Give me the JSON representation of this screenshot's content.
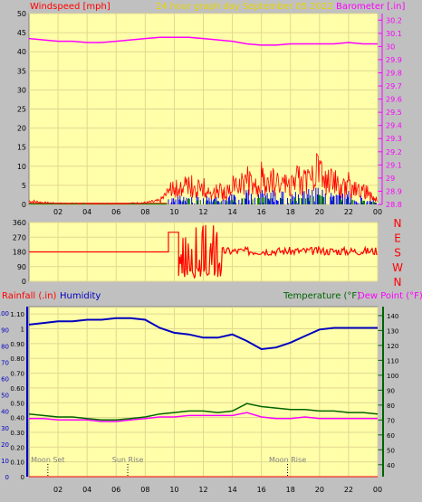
{
  "header": {
    "left_label": "Windspeed [mph]",
    "center_label": "24 hour graph day   September 05 2022",
    "right_label": "Barometer [.in]"
  },
  "bottom_header": {
    "rain_label": "Rainfall (.in)",
    "humidity_label": "Humidity",
    "temp_label": "Temperature (°F)",
    "dew_label": "Dew Point (°F)"
  },
  "colors": {
    "background": "#c0c0c0",
    "plot": "#ffffaa",
    "grid": "#e0d890",
    "wind": "#ff0000",
    "gust": "#0000ff",
    "green": "#008000",
    "barometer": "#ff00ff",
    "humidity": "#0000c0",
    "temperature": "#006400",
    "dewpoint": "#ff00ff",
    "header_yellow": "#e8d400"
  },
  "chart_data": [
    {
      "type": "line",
      "title": "24 hour graph day   September 05 2022",
      "x_ticks": [
        "02",
        "04",
        "06",
        "08",
        "10",
        "12",
        "14",
        "16",
        "18",
        "20",
        "22",
        "00"
      ],
      "ylabel_left": "Windspeed [mph]",
      "ylabel_right": "Barometer [.in]",
      "y_left_ticks": [
        0,
        5,
        10,
        15,
        20,
        25,
        30,
        35,
        40,
        45,
        50
      ],
      "ylim_left": [
        0,
        50
      ],
      "y_right_ticks": [
        28.8,
        28.9,
        29,
        29.1,
        29.2,
        29.3,
        29.4,
        29.5,
        29.6,
        29.7,
        29.8,
        29.9,
        30,
        30.1,
        30.2
      ],
      "ylim_right": [
        28.8,
        30.25
      ],
      "series": [
        {
          "name": "Barometer [.in]",
          "axis": "right",
          "x": [
            0,
            1,
            2,
            3,
            4,
            5,
            6,
            7,
            8,
            9,
            10,
            11,
            12,
            13,
            14,
            15,
            16,
            17,
            18,
            19,
            20,
            21,
            22,
            23,
            24
          ],
          "values": [
            30.06,
            30.05,
            30.04,
            30.04,
            30.03,
            30.03,
            30.04,
            30.05,
            30.06,
            30.07,
            30.07,
            30.07,
            30.06,
            30.05,
            30.04,
            30.02,
            30.01,
            30.01,
            30.02,
            30.02,
            30.02,
            30.02,
            30.03,
            30.02,
            30.02
          ]
        },
        {
          "name": "Windspeed [mph]",
          "axis": "left",
          "x": [
            0,
            1,
            2,
            3,
            4,
            5,
            6,
            7,
            8,
            9,
            9.5,
            10,
            10.5,
            11,
            11.5,
            12,
            12.5,
            13,
            13.5,
            14,
            14.5,
            15,
            15.5,
            16,
            16.5,
            17,
            17.5,
            18,
            18.5,
            19,
            19.5,
            20,
            20.5,
            21,
            21.5,
            22,
            22.5,
            23,
            23.5,
            24
          ],
          "values": [
            1,
            0.5,
            0.3,
            0.3,
            0.2,
            0.2,
            0.2,
            0.3,
            0.5,
            1,
            3,
            5,
            4,
            6,
            4,
            5,
            3,
            4,
            3,
            5,
            6,
            7,
            5,
            8,
            6,
            7,
            6,
            5,
            7,
            6,
            8,
            10,
            6,
            7,
            5,
            6,
            4,
            4,
            3,
            2
          ]
        }
      ]
    },
    {
      "type": "line",
      "x_ticks": [
        "02",
        "04",
        "06",
        "08",
        "10",
        "12",
        "14",
        "16",
        "18",
        "20",
        "22",
        "00"
      ],
      "y_left_ticks": [
        0,
        90,
        180,
        270,
        360
      ],
      "ylim": [
        0,
        360
      ],
      "y_right_labels": [
        "N",
        "W",
        "S",
        "E",
        "N"
      ],
      "series": [
        {
          "name": "Wind Direction",
          "x": [
            0,
            1,
            2,
            3,
            4,
            5,
            6,
            7,
            8,
            9,
            9.5,
            10,
            11,
            12,
            13,
            14,
            15,
            16,
            17,
            18,
            19,
            20,
            21,
            22,
            23,
            24
          ],
          "values": [
            180,
            180,
            180,
            180,
            180,
            180,
            180,
            180,
            180,
            180,
            300,
            200,
            150,
            180,
            170,
            180,
            200,
            200,
            190,
            195,
            185,
            190,
            190,
            185,
            180,
            190
          ]
        }
      ]
    },
    {
      "type": "line",
      "x_ticks": [
        "02",
        "04",
        "06",
        "08",
        "10",
        "12",
        "14",
        "16",
        "18",
        "20",
        "22",
        "00"
      ],
      "y_left_ticks": [
        0,
        0.1,
        0.2,
        0.3,
        0.4,
        0.5,
        0.6,
        0.7,
        0.8,
        0.9,
        1,
        1.1
      ],
      "y_left_tick_labels": [
        "0",
        "0.10",
        "0.20",
        "0.30",
        "0.40",
        "0.50",
        "0.60",
        "0.70",
        "0.80",
        "0.90",
        "1",
        "1.10"
      ],
      "y_inner_ticks": [
        0,
        10,
        20,
        30,
        40,
        50,
        60,
        70,
        80,
        90,
        100
      ],
      "y_right_ticks": [
        40,
        50,
        60,
        70,
        80,
        90,
        100,
        110,
        120,
        130,
        140
      ],
      "ylabel_left": "Rainfall (.in)",
      "ylabel_humidity": "Humidity",
      "ylabel_right": "Temperature (°F) Dew Point (°F)",
      "annotations": [
        {
          "label": "Moon Set",
          "x": 1.3
        },
        {
          "label": "Sun Rise",
          "x": 6.8
        },
        {
          "label": "Moon Rise",
          "x": 17.8
        }
      ],
      "series": [
        {
          "name": "Humidity",
          "axis": "humidity",
          "x": [
            0,
            1,
            2,
            3,
            4,
            5,
            6,
            7,
            8,
            9,
            10,
            11,
            12,
            13,
            14,
            15,
            16,
            17,
            18,
            19,
            20,
            21,
            22,
            23,
            24
          ],
          "values": [
            93,
            94,
            95,
            95,
            96,
            96,
            97,
            97,
            96,
            91,
            88,
            87,
            85,
            85,
            87,
            83,
            78,
            79,
            82,
            86,
            90,
            91,
            91,
            91,
            91
          ]
        },
        {
          "name": "Temperature (°F)",
          "axis": "right",
          "x": [
            0,
            1,
            2,
            3,
            4,
            5,
            6,
            7,
            8,
            9,
            10,
            11,
            12,
            13,
            14,
            15,
            16,
            17,
            18,
            19,
            20,
            21,
            22,
            23,
            24
          ],
          "values": [
            74,
            73,
            72,
            72,
            71,
            70,
            70,
            71,
            72,
            74,
            75,
            76,
            76,
            75,
            76,
            81,
            79,
            78,
            77,
            77,
            76,
            76,
            75,
            75,
            74
          ]
        },
        {
          "name": "Dew Point (°F)",
          "axis": "right",
          "x": [
            0,
            1,
            2,
            3,
            4,
            5,
            6,
            7,
            8,
            9,
            10,
            11,
            12,
            13,
            14,
            15,
            16,
            17,
            18,
            19,
            20,
            21,
            22,
            23,
            24
          ],
          "values": [
            71,
            71,
            70,
            70,
            70,
            69,
            69,
            70,
            71,
            72,
            72,
            73,
            73,
            73,
            73,
            75,
            72,
            71,
            71,
            72,
            71,
            71,
            71,
            71,
            71
          ]
        },
        {
          "name": "Rainfall (.in)",
          "axis": "left",
          "x": [
            0,
            24
          ],
          "values": [
            0,
            0
          ]
        }
      ]
    }
  ]
}
